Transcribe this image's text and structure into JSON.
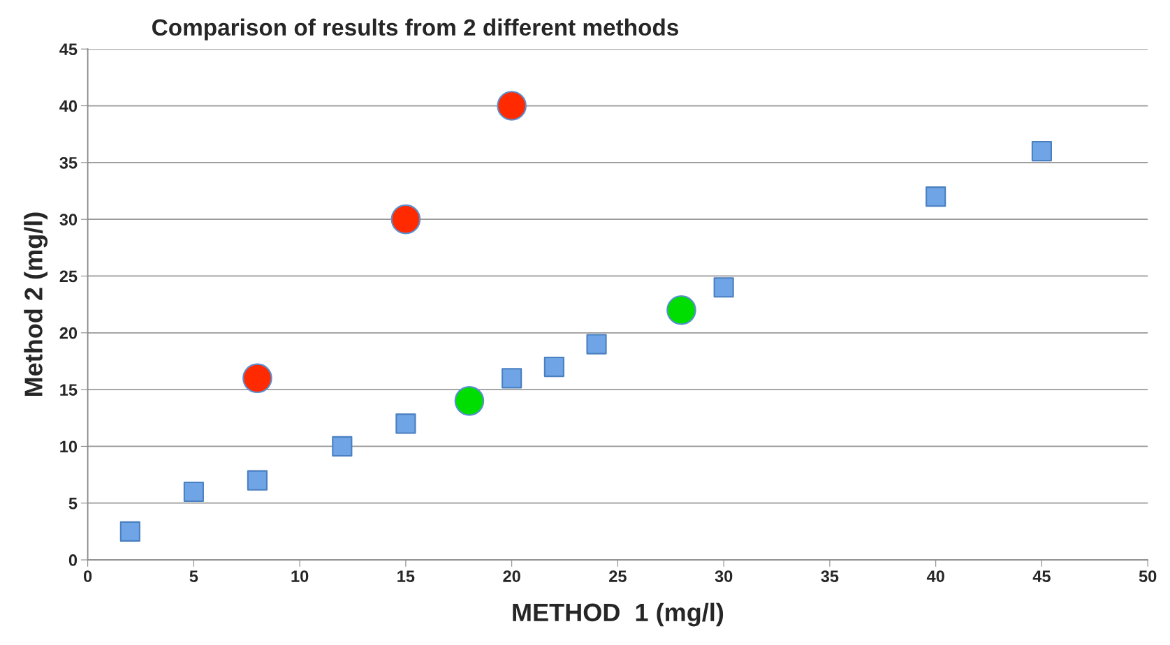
{
  "chart_data": {
    "type": "scatter",
    "title": "Comparison of results from 2 different methods",
    "xlabel": "METHOD  1 (mg/l)",
    "ylabel": "Method 2 (mg/l)",
    "series": [
      {
        "color": "#6fa5e6",
        "marker": "square",
        "x": [
          2,
          5,
          8,
          12,
          15,
          20,
          22,
          24,
          30,
          40,
          45
        ],
        "values": [
          2.5,
          6,
          7,
          10,
          12,
          16,
          17,
          19,
          24,
          32,
          36
        ]
      },
      {
        "color": "#ff2a00",
        "marker": "circle",
        "x": [
          8,
          15,
          20
        ],
        "values": [
          16,
          30,
          40
        ]
      },
      {
        "color": "#00dd00",
        "marker": "circle",
        "x": [
          18,
          28
        ],
        "values": [
          14,
          22
        ]
      }
    ],
    "xlim": [
      0,
      50
    ],
    "xticks": [
      0,
      5,
      10,
      15,
      20,
      25,
      30,
      35,
      40,
      45,
      50
    ],
    "ylim": [
      0,
      45
    ],
    "yticks": [
      0,
      5,
      10,
      15,
      20,
      25,
      30,
      35,
      40,
      45
    ],
    "grid": "y",
    "legend": false
  }
}
